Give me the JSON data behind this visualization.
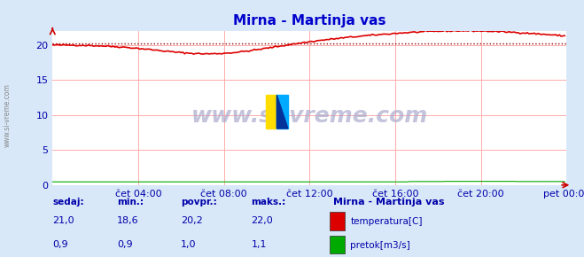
{
  "title": "Mirna - Martinja vas",
  "bg_color": "#d8e8f8",
  "plot_bg_color": "#ffffff",
  "grid_color": "#ffaaaa",
  "xlabel_color": "#0000aa",
  "title_color": "#0000cc",
  "x_tick_labels": [
    "čet 04:00",
    "čet 08:00",
    "čet 12:00",
    "čet 16:00",
    "čet 20:00",
    "pet 00:00"
  ],
  "x_tick_positions": [
    48,
    96,
    144,
    192,
    240,
    288
  ],
  "y_ticks": [
    0,
    5,
    10,
    15,
    20
  ],
  "ylim": [
    0,
    22
  ],
  "xlim": [
    0,
    288
  ],
  "watermark": "www.si-vreme.com",
  "watermark_color": "#aaaacc",
  "sidebar_text": "www.si-vreme.com",
  "legend_title": "Mirna - Martinja vas",
  "legend_items": [
    {
      "label": "temperatura[C]",
      "color": "#dd0000"
    },
    {
      "label": "pretok[m3/s]",
      "color": "#00bb00"
    }
  ],
  "stats_headers": [
    "sedaj:",
    "min.:",
    "povpr.:",
    "maks.:"
  ],
  "stats_temp": [
    "21,0",
    "18,6",
    "20,2",
    "22,0"
  ],
  "stats_flow": [
    "0,9",
    "0,9",
    "1,0",
    "1,1"
  ],
  "temp_color": "#dd0000",
  "flow_color": "#00aa00",
  "mean_line_value": 20.2,
  "mean_line_color": "#880000"
}
